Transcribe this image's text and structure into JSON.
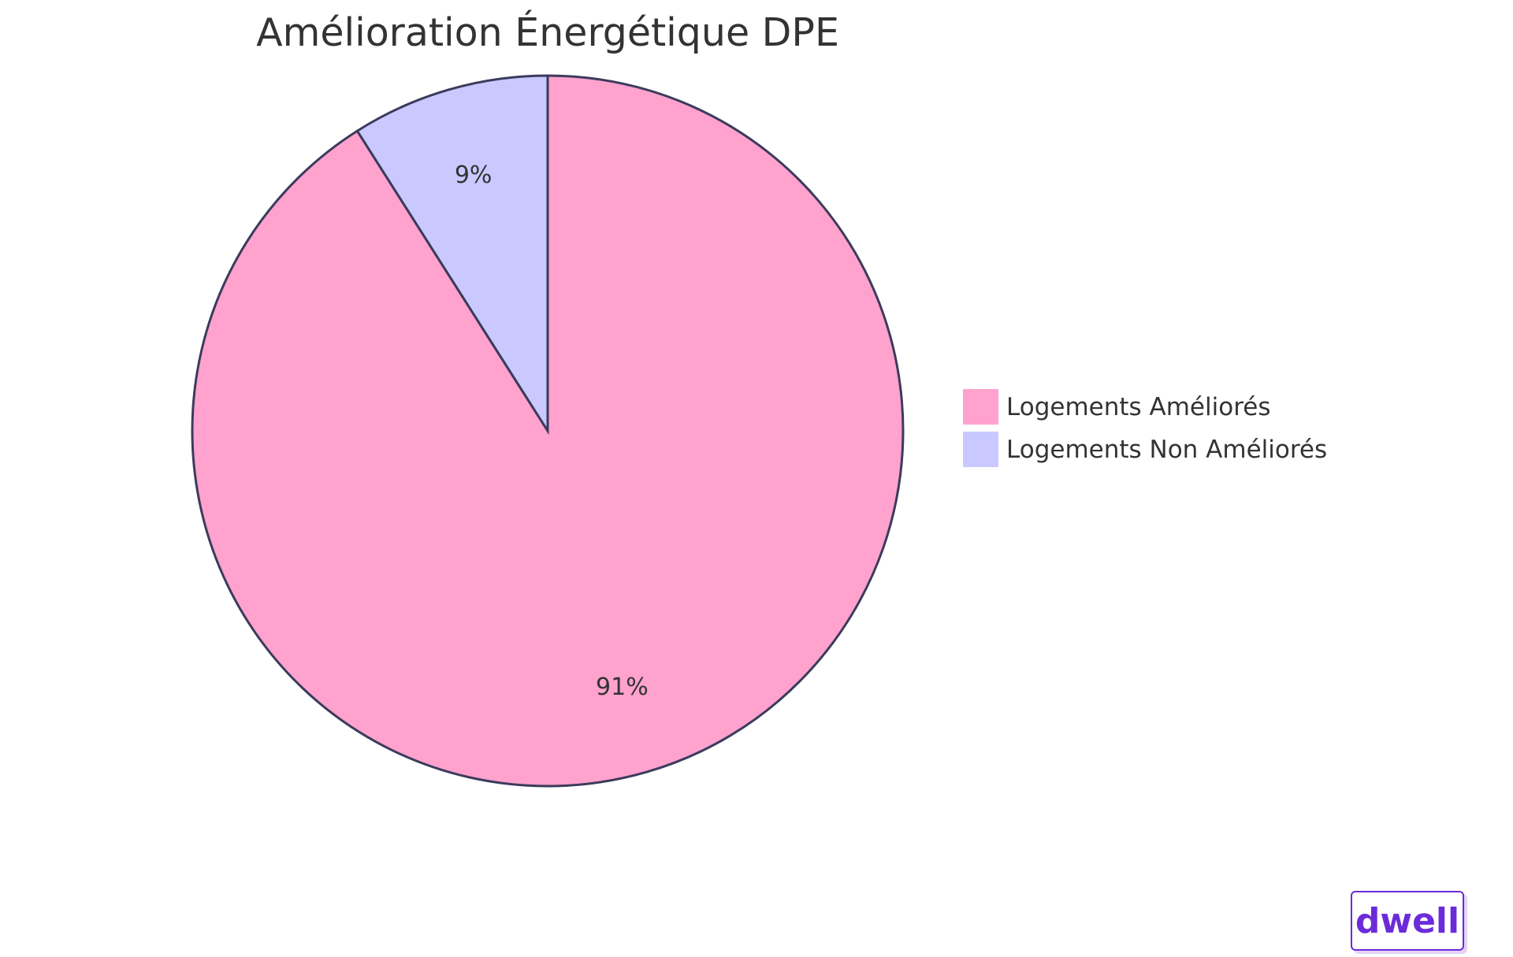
{
  "chart_data": {
    "type": "pie",
    "title": "Amélioration Énergétique DPE",
    "slices": [
      {
        "label": "Logements Améliorés",
        "value": 91,
        "display": "91%",
        "color": "#ffa2ce"
      },
      {
        "label": "Logements Non Améliorés",
        "value": 9,
        "display": "9%",
        "color": "#c9c9ff"
      }
    ],
    "legend_placement": "right",
    "stroke_color": "#3b3b5c"
  },
  "brand": {
    "logo_text": "dwell",
    "color": "#6c2bd9"
  }
}
